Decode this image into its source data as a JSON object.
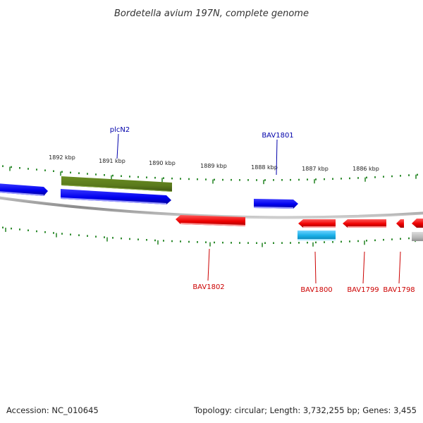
{
  "title": "Bordetella avium 197N, complete genome",
  "footer": {
    "accession": "Accession: NC_010645",
    "summary": "Topology: circular; Length: 3,732,255 bp; Genes: 3,455"
  },
  "colors": {
    "forward_cds": "#0000ee",
    "reverse_cds": "#ee0000",
    "rna_gene": "#6b8e23",
    "misc_feature": "#1ab0e8",
    "other": "#b0b0b0",
    "backbone": "#888888",
    "ticks": "#2e8b2e",
    "forward_label": "#0000aa",
    "reverse_label": "#cc0000"
  },
  "ticks": [
    "1892 kbp",
    "1891 kbp",
    "1890 kbp",
    "1889 kbp",
    "1888 kbp",
    "1887 kbp",
    "1886 kbp"
  ],
  "genes": [
    {
      "label": "plcN2",
      "strand": "forward"
    },
    {
      "label": "BAV1801",
      "strand": "forward"
    },
    {
      "label": "BAV1802",
      "strand": "reverse"
    },
    {
      "label": "BAV1800",
      "strand": "reverse"
    },
    {
      "label": "BAV1799",
      "strand": "reverse"
    },
    {
      "label": "BAV1798",
      "strand": "reverse"
    }
  ]
}
